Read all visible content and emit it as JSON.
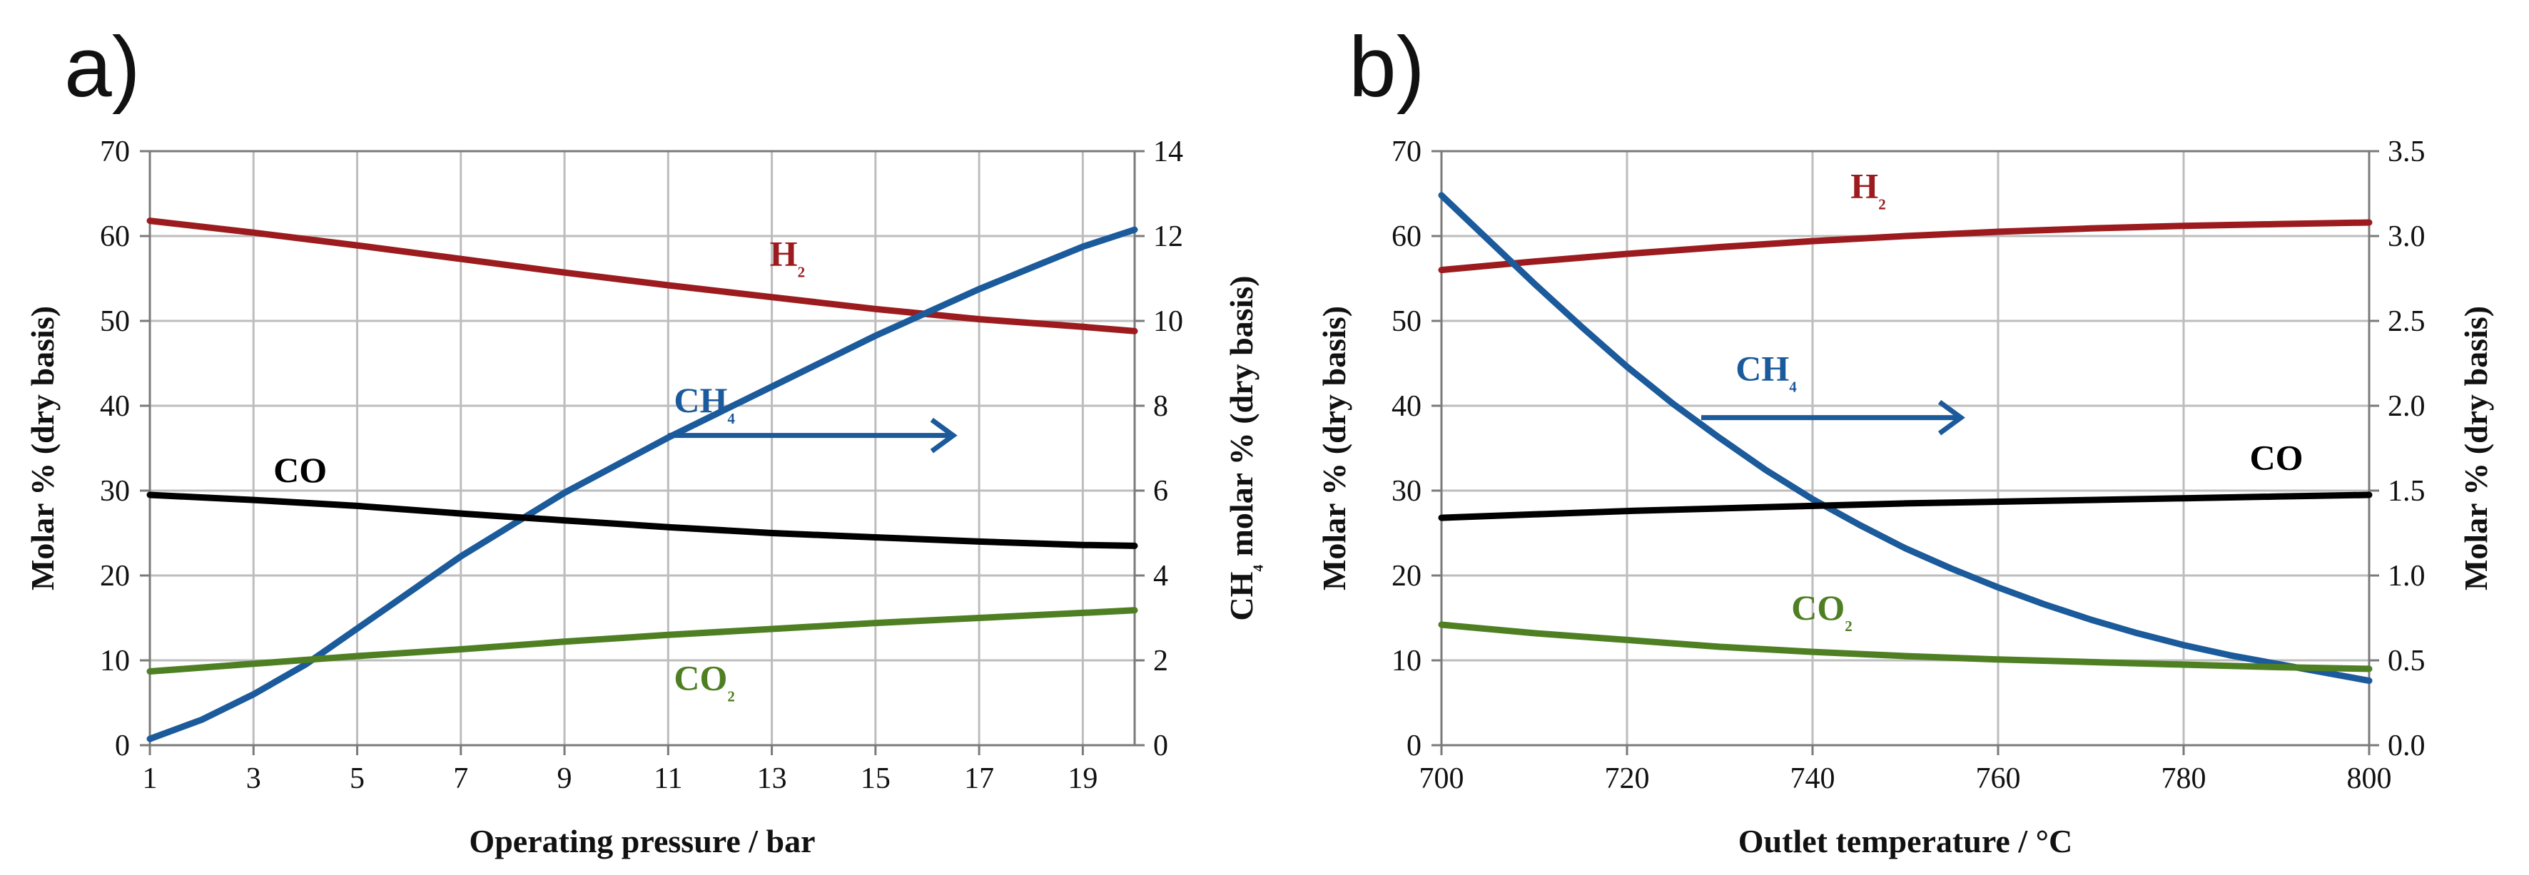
{
  "colors": {
    "h2": "#9b1b1e",
    "ch4": "#1b5a9b",
    "co": "#000000",
    "co2": "#4f7f23"
  },
  "chart_data": [
    {
      "type": "line",
      "panel_label": "a)",
      "xlabel": "Operating pressure / bar",
      "ylabel_left": "Molar % (dry basis)",
      "ylabel_right": "CH₄ molar % (dry basis)",
      "xlim": [
        1,
        20
      ],
      "x_ticks": [
        1,
        3,
        5,
        7,
        9,
        11,
        13,
        15,
        17,
        19
      ],
      "ylim_left": [
        0,
        70
      ],
      "y_ticks_left": [
        0,
        10,
        20,
        30,
        40,
        50,
        60,
        70
      ],
      "ylim_right": [
        0,
        14
      ],
      "y_ticks_right": [
        0,
        2,
        4,
        6,
        8,
        10,
        12,
        14
      ],
      "grid": true,
      "series": [
        {
          "name": "H₂",
          "key": "h2",
          "axis": "left",
          "x": [
            1,
            3,
            5,
            7,
            9,
            11,
            13,
            15,
            17,
            19,
            20
          ],
          "y": [
            61.8,
            60.4,
            58.9,
            57.3,
            55.7,
            54.2,
            52.8,
            51.4,
            50.2,
            49.3,
            48.8
          ],
          "label_at": [
            13.3,
            56.5
          ]
        },
        {
          "name": "CH₄",
          "key": "ch4",
          "axis": "right",
          "x": [
            1,
            2,
            3,
            4,
            5,
            6,
            7,
            8,
            9,
            10,
            11,
            12,
            13,
            14,
            15,
            16,
            17,
            18,
            19,
            20
          ],
          "y": [
            0.15,
            0.6,
            1.2,
            1.9,
            2.75,
            3.6,
            4.45,
            5.2,
            5.95,
            6.6,
            7.25,
            7.85,
            8.45,
            9.05,
            9.65,
            10.2,
            10.75,
            11.25,
            11.75,
            12.15
          ],
          "label_at": [
            11.7,
            7.85
          ],
          "arrow": [
            11.0,
            16.5,
            7.3
          ]
        },
        {
          "name": "CO",
          "key": "co",
          "axis": "left",
          "x": [
            1,
            3,
            5,
            7,
            9,
            11,
            13,
            15,
            17,
            19,
            20
          ],
          "y": [
            29.5,
            28.9,
            28.2,
            27.3,
            26.5,
            25.7,
            25.0,
            24.5,
            24.0,
            23.6,
            23.5
          ],
          "label_at": [
            3.9,
            31.0
          ]
        },
        {
          "name": "CO₂",
          "key": "co2",
          "axis": "left",
          "x": [
            1,
            3,
            5,
            7,
            9,
            11,
            13,
            15,
            17,
            19,
            20
          ],
          "y": [
            8.7,
            9.6,
            10.5,
            11.3,
            12.2,
            13.0,
            13.7,
            14.4,
            15.0,
            15.6,
            15.9
          ],
          "label_at": [
            11.7,
            6.5
          ]
        }
      ]
    },
    {
      "type": "line",
      "panel_label": "b)",
      "xlabel": "Outlet temperature  / °C",
      "ylabel_left": "Molar % (dry basis)",
      "ylabel_right": "Molar % (dry basis)",
      "xlim": [
        700,
        800
      ],
      "x_ticks": [
        700,
        720,
        740,
        760,
        780,
        800
      ],
      "ylim_left": [
        0,
        70
      ],
      "y_ticks_left": [
        0,
        10,
        20,
        30,
        40,
        50,
        60,
        70
      ],
      "ylim_right": [
        0,
        3.5
      ],
      "y_ticks_right": [
        "0.0",
        "0.5",
        "1.0",
        "1.5",
        "2.0",
        "2.5",
        "3.0",
        "3.5"
      ],
      "grid": true,
      "series": [
        {
          "name": "H₂",
          "key": "h2",
          "axis": "left",
          "x": [
            700,
            710,
            720,
            730,
            740,
            750,
            760,
            770,
            780,
            790,
            800
          ],
          "y": [
            56.0,
            57.0,
            57.9,
            58.7,
            59.4,
            60.0,
            60.5,
            60.9,
            61.2,
            61.4,
            61.6
          ],
          "label_at": [
            746,
            64.5
          ]
        },
        {
          "name": "CH₄",
          "key": "ch4",
          "axis": "right",
          "x": [
            700,
            705,
            710,
            715,
            720,
            725,
            730,
            735,
            740,
            745,
            750,
            755,
            760,
            765,
            770,
            775,
            780,
            785,
            790,
            795,
            800
          ],
          "y": [
            3.24,
            2.98,
            2.72,
            2.47,
            2.23,
            2.01,
            1.81,
            1.62,
            1.45,
            1.3,
            1.16,
            1.04,
            0.93,
            0.83,
            0.74,
            0.66,
            0.59,
            0.53,
            0.48,
            0.43,
            0.38
          ],
          "label_at": [
            735,
            2.15
          ],
          "arrow": [
            728,
            756,
            1.93
          ]
        },
        {
          "name": "CO",
          "key": "co",
          "axis": "left",
          "x": [
            700,
            710,
            720,
            730,
            740,
            750,
            760,
            770,
            780,
            790,
            800
          ],
          "y": [
            26.8,
            27.2,
            27.6,
            27.9,
            28.2,
            28.5,
            28.7,
            28.9,
            29.1,
            29.3,
            29.5
          ],
          "label_at": [
            790,
            32.5
          ]
        },
        {
          "name": "CO₂",
          "key": "co2",
          "axis": "left",
          "x": [
            700,
            710,
            720,
            730,
            740,
            750,
            760,
            770,
            780,
            790,
            800
          ],
          "y": [
            14.2,
            13.2,
            12.4,
            11.6,
            11.0,
            10.5,
            10.1,
            9.8,
            9.5,
            9.2,
            9.0
          ],
          "label_at": [
            741,
            14.8
          ]
        }
      ]
    }
  ]
}
